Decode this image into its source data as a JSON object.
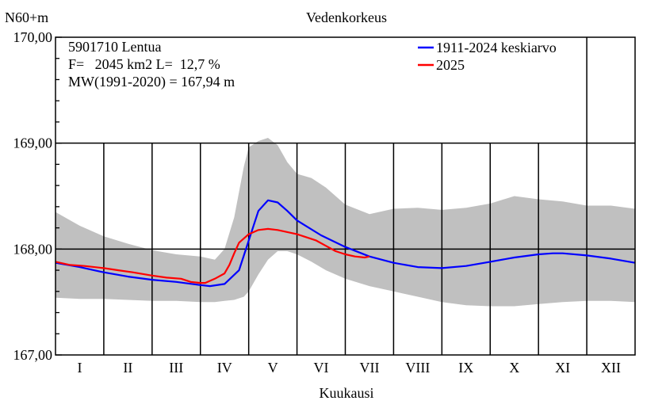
{
  "chart_data": {
    "type": "line",
    "title": "Vedenkorkeus",
    "ylabel": "N60+m",
    "xlabel": "Kuukausi",
    "ylim": [
      167.0,
      170.0
    ],
    "yticks": [
      "167,00",
      "168,00",
      "169,00",
      "170,00"
    ],
    "categories": [
      "I",
      "II",
      "III",
      "IV",
      "V",
      "VI",
      "VII",
      "VIII",
      "IX",
      "X",
      "XI",
      "XII"
    ],
    "info_lines": [
      "5901710 Lentua",
      "F=   2045 km2 L=  12,7 %",
      "MW(1991-2020) = 167,94 m"
    ],
    "grid": true,
    "legend_position": "top-right",
    "x_unit": "month (0 = start of January, 12 = end of December)",
    "series": [
      {
        "name": "1911-2024 keskiarvo",
        "color": "#0000ff",
        "x": [
          0,
          0.5,
          1,
          1.5,
          2,
          2.5,
          3,
          3.2,
          3.5,
          3.8,
          4.0,
          4.2,
          4.4,
          4.6,
          4.8,
          5.0,
          5.5,
          6.0,
          6.5,
          7.0,
          7.5,
          8.0,
          8.5,
          9.0,
          9.5,
          10.0,
          10.3,
          10.5,
          11.0,
          11.5,
          12.0
        ],
        "values": [
          167.87,
          167.83,
          167.78,
          167.74,
          167.71,
          167.69,
          167.66,
          167.65,
          167.67,
          167.8,
          168.08,
          168.36,
          168.46,
          168.44,
          168.36,
          168.27,
          168.13,
          168.02,
          167.93,
          167.87,
          167.83,
          167.82,
          167.84,
          167.88,
          167.92,
          167.95,
          167.96,
          167.96,
          167.94,
          167.91,
          167.87
        ]
      },
      {
        "name": "2025",
        "color": "#ff0000",
        "x": [
          0,
          0.3,
          0.6,
          1.0,
          1.3,
          1.6,
          2.0,
          2.3,
          2.6,
          2.8,
          3.0,
          3.1,
          3.3,
          3.5,
          3.6,
          3.7,
          3.8,
          4.0,
          4.2,
          4.4,
          4.6,
          4.8,
          5.0,
          5.2,
          5.4,
          5.6,
          5.8,
          6.0,
          6.2,
          6.4,
          6.5
        ],
        "values": [
          167.88,
          167.85,
          167.84,
          167.82,
          167.8,
          167.78,
          167.75,
          167.73,
          167.72,
          167.69,
          167.68,
          167.68,
          167.72,
          167.77,
          167.85,
          167.96,
          168.06,
          168.14,
          168.18,
          168.19,
          168.18,
          168.16,
          168.14,
          168.11,
          168.08,
          168.03,
          167.98,
          167.95,
          167.93,
          167.92,
          167.93
        ]
      }
    ],
    "range_band": {
      "color": "#c0c0c0",
      "x": [
        0,
        0.5,
        1,
        1.5,
        2,
        2.5,
        3,
        3.3,
        3.5,
        3.7,
        3.9,
        4.0,
        4.2,
        4.4,
        4.6,
        4.8,
        5.0,
        5.3,
        5.6,
        6.0,
        6.5,
        7.0,
        7.5,
        8.0,
        8.5,
        9.0,
        9.5,
        10.0,
        10.5,
        11.0,
        11.5,
        12.0
      ],
      "upper": [
        168.35,
        168.22,
        168.12,
        168.05,
        167.99,
        167.95,
        167.93,
        167.9,
        168.0,
        168.3,
        168.78,
        168.96,
        169.02,
        169.05,
        168.98,
        168.82,
        168.71,
        168.67,
        168.58,
        168.42,
        168.33,
        168.38,
        168.39,
        168.37,
        168.39,
        168.43,
        168.5,
        168.47,
        168.45,
        168.41,
        168.41,
        168.38
      ],
      "lower": [
        167.54,
        167.53,
        167.53,
        167.52,
        167.51,
        167.51,
        167.5,
        167.5,
        167.51,
        167.52,
        167.55,
        167.6,
        167.76,
        167.9,
        167.98,
        167.98,
        167.95,
        167.88,
        167.8,
        167.72,
        167.65,
        167.6,
        167.55,
        167.5,
        167.47,
        167.46,
        167.46,
        167.48,
        167.5,
        167.51,
        167.51,
        167.5
      ]
    }
  }
}
